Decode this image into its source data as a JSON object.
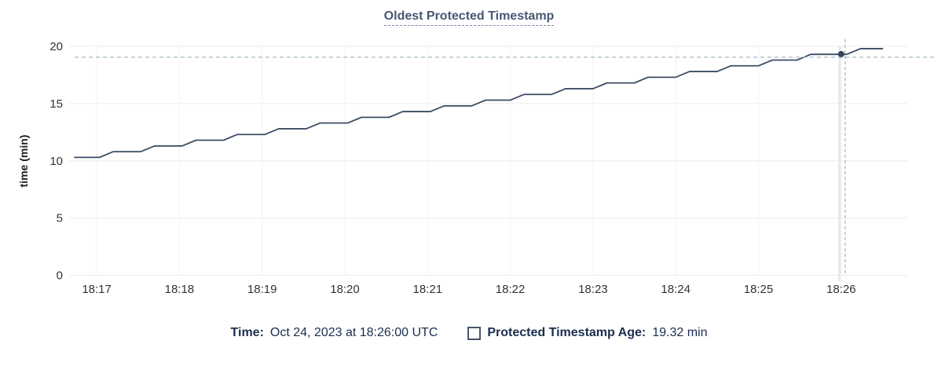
{
  "title": "Oldest Protected Timestamp",
  "colors": {
    "title": "#475872",
    "line": "#3d4c66",
    "point": "#36455e",
    "crosshair_dash": "#a4b9c5",
    "hover_band": "#e8e8e8",
    "grid_h": "#ececec",
    "grid_v": "#f2f2f2",
    "tick_text": "#2f343b",
    "legend_text": "#1b2e4f"
  },
  "chart_data": {
    "type": "line",
    "title": "Oldest Protected Timestamp",
    "xlabel": "",
    "ylabel": "time (min)",
    "ylim": [
      0,
      20
    ],
    "y_ticks": [
      0,
      5,
      10,
      15,
      20
    ],
    "x_ticks": [
      "18:17",
      "18:18",
      "18:19",
      "18:20",
      "18:21",
      "18:22",
      "18:23",
      "18:24",
      "18:25",
      "18:26"
    ],
    "x_domain": [
      "18:16:40",
      "18:26:48"
    ],
    "grid": true,
    "legend_position": "bottom",
    "series": [
      {
        "name": "Protected Timestamp Age",
        "color": "#3d4c66",
        "points": [
          [
            "18:16:44",
            10.3
          ],
          [
            "18:17:02",
            10.3
          ],
          [
            "18:17:12",
            10.8
          ],
          [
            "18:17:32",
            10.8
          ],
          [
            "18:17:42",
            11.3
          ],
          [
            "18:18:02",
            11.3
          ],
          [
            "18:18:12",
            11.8
          ],
          [
            "18:18:32",
            11.8
          ],
          [
            "18:18:42",
            12.3
          ],
          [
            "18:19:02",
            12.3
          ],
          [
            "18:19:12",
            12.8
          ],
          [
            "18:19:32",
            12.8
          ],
          [
            "18:19:42",
            13.3
          ],
          [
            "18:20:02",
            13.3
          ],
          [
            "18:20:12",
            13.8
          ],
          [
            "18:20:32",
            13.8
          ],
          [
            "18:20:42",
            14.3
          ],
          [
            "18:21:02",
            14.3
          ],
          [
            "18:21:12",
            14.8
          ],
          [
            "18:21:32",
            14.8
          ],
          [
            "18:21:42",
            15.3
          ],
          [
            "18:22:00",
            15.3
          ],
          [
            "18:22:10",
            15.8
          ],
          [
            "18:22:30",
            15.8
          ],
          [
            "18:22:40",
            16.3
          ],
          [
            "18:23:00",
            16.3
          ],
          [
            "18:23:10",
            16.8
          ],
          [
            "18:23:30",
            16.8
          ],
          [
            "18:23:40",
            17.3
          ],
          [
            "18:24:00",
            17.3
          ],
          [
            "18:24:10",
            17.8
          ],
          [
            "18:24:30",
            17.8
          ],
          [
            "18:24:40",
            18.3
          ],
          [
            "18:25:00",
            18.3
          ],
          [
            "18:25:10",
            18.8
          ],
          [
            "18:25:28",
            18.8
          ],
          [
            "18:25:38",
            19.3
          ],
          [
            "18:26:04",
            19.3
          ],
          [
            "18:26:14",
            19.8
          ],
          [
            "18:26:30",
            19.8
          ]
        ]
      }
    ],
    "crosshair": {
      "time": "18:26:00",
      "value": 19.32
    }
  },
  "legend": {
    "time_label": "Time:",
    "time_value": "Oct 24, 2023 at 18:26:00 UTC",
    "series_label": "Protected Timestamp Age:",
    "series_value": "19.32 min"
  }
}
